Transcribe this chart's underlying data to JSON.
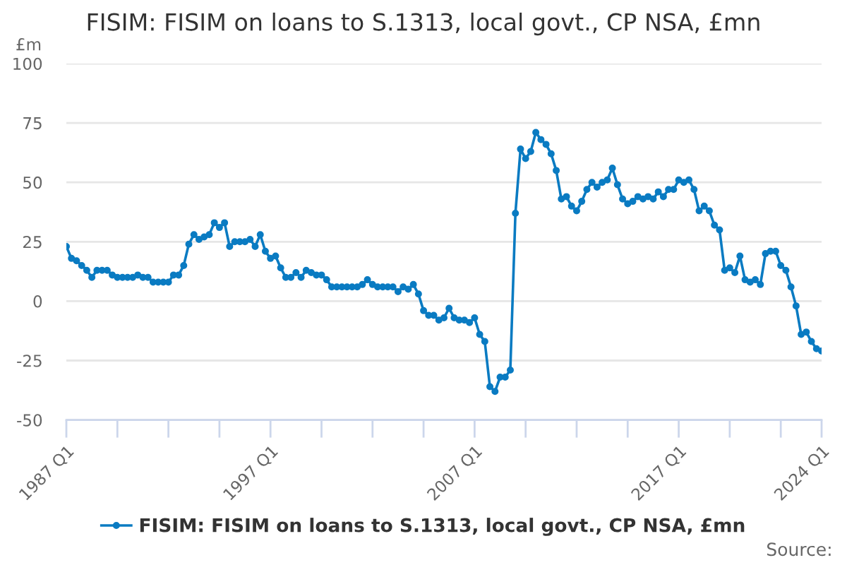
{
  "chart_data": {
    "type": "line",
    "title": "FISIM: FISIM on loans to S.1313, local govt., CP NSA, £mn",
    "ylabel": "£m",
    "categories": [
      "1987 Q1",
      null,
      null,
      null,
      null,
      null,
      null,
      null,
      null,
      null,
      null,
      null,
      null,
      null,
      null,
      null,
      null,
      null,
      null,
      null,
      null,
      null,
      null,
      null,
      null,
      null,
      null,
      null,
      null,
      null,
      null,
      null,
      null,
      null,
      null,
      null,
      null,
      null,
      null,
      null,
      "1997 Q1",
      null,
      null,
      null,
      null,
      null,
      null,
      null,
      null,
      null,
      null,
      null,
      null,
      null,
      null,
      null,
      null,
      null,
      null,
      null,
      null,
      null,
      null,
      null,
      null,
      null,
      null,
      null,
      null,
      null,
      null,
      null,
      null,
      null,
      null,
      null,
      null,
      null,
      null,
      null,
      "2007 Q1",
      null,
      null,
      null,
      null,
      null,
      null,
      null,
      null,
      null,
      null,
      null,
      null,
      null,
      null,
      null,
      null,
      null,
      null,
      null,
      null,
      null,
      null,
      null,
      null,
      null,
      null,
      null,
      null,
      null,
      null,
      null,
      null,
      null,
      null,
      null,
      null,
      null,
      null,
      null,
      "2017 Q1",
      null,
      null,
      null,
      null,
      null,
      null,
      null,
      null,
      null,
      null,
      null,
      null,
      null,
      null,
      null,
      null,
      null,
      null,
      null,
      null,
      null,
      null,
      null,
      null,
      null,
      null,
      null,
      "2024 Q1"
    ],
    "series": [
      {
        "name": "FISIM: FISIM on loans to S.1313, local govt., CP NSA, £mn",
        "color": "#0a7bc2",
        "values": [
          23,
          18,
          17,
          15,
          13,
          10,
          13,
          13,
          13,
          11,
          10,
          10,
          10,
          10,
          11,
          10,
          10,
          8,
          8,
          8,
          8,
          11,
          11,
          15,
          24,
          28,
          26,
          27,
          28,
          33,
          31,
          33,
          23,
          25,
          25,
          25,
          26,
          23,
          28,
          21,
          18,
          19,
          14,
          10,
          10,
          12,
          10,
          13,
          12,
          11,
          11,
          9,
          6,
          6,
          6,
          6,
          6,
          6,
          7,
          9,
          7,
          6,
          6,
          6,
          6,
          4,
          6,
          5,
          7,
          3,
          -4,
          -6,
          -6,
          -8,
          -7,
          -3,
          -7,
          -8,
          -8,
          -9,
          -7,
          -14,
          -17,
          -36,
          -38,
          -32,
          -32,
          -29,
          37,
          64,
          60,
          63,
          71,
          68,
          66,
          62,
          55,
          43,
          44,
          40,
          38,
          42,
          47,
          50,
          48,
          50,
          51,
          56,
          49,
          43,
          41,
          42,
          44,
          43,
          44,
          43,
          46,
          44,
          47,
          47,
          51,
          50,
          51,
          47,
          38,
          40,
          38,
          32,
          30,
          13,
          14,
          12,
          19,
          9,
          8,
          9,
          7,
          20,
          21,
          21,
          15,
          13,
          6,
          -2,
          -14,
          -13,
          -17,
          -20,
          -21
        ]
      }
    ],
    "ylim": [
      -50,
      100
    ],
    "yticks": [
      -50,
      -25,
      0,
      25,
      50,
      75,
      100
    ],
    "grid": "y",
    "legend": "bottom",
    "marker": "circle",
    "line_style": "solid",
    "annotations": [
      "Source:"
    ]
  }
}
